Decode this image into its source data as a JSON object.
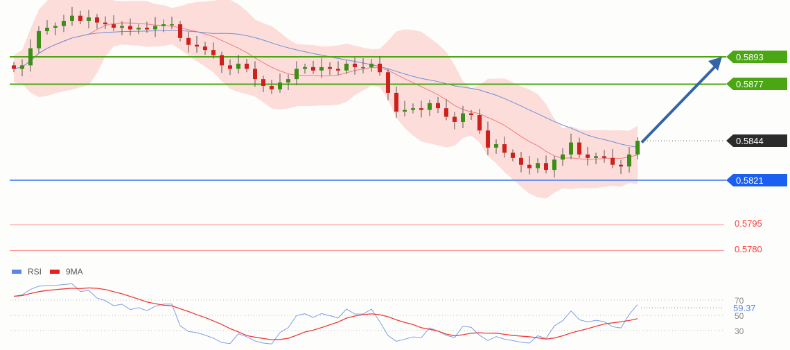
{
  "chart_data": {
    "type": "candlestick",
    "instrument_price_scale": "price",
    "price_range": [
      0.577,
      0.592
    ],
    "closes": [
      0.5886,
      0.5888,
      0.5898,
      0.5908,
      0.591,
      0.5911,
      0.5914,
      0.5917,
      0.5914,
      0.5916,
      0.5913,
      0.5912,
      0.591,
      0.5911,
      0.5909,
      0.591,
      0.5909,
      0.5911,
      0.5912,
      0.5912,
      0.5904,
      0.59,
      0.5899,
      0.5897,
      0.5894,
      0.5888,
      0.5886,
      0.5889,
      0.5886,
      0.588,
      0.5876,
      0.5874,
      0.5878,
      0.588,
      0.5886,
      0.5887,
      0.5885,
      0.5887,
      0.5886,
      0.5885,
      0.5889,
      0.5887,
      0.5887,
      0.5889,
      0.5884,
      0.5872,
      0.5861,
      0.5862,
      0.5863,
      0.5862,
      0.5866,
      0.5863,
      0.5858,
      0.5855,
      0.586,
      0.5859,
      0.585,
      0.584,
      0.5842,
      0.5837,
      0.5834,
      0.583,
      0.5828,
      0.5831,
      0.5827,
      0.5833,
      0.5836,
      0.5843,
      0.5836,
      0.5834,
      0.5835,
      0.5834,
      0.583,
      0.5829,
      0.5836,
      0.5844
    ],
    "levels": [
      {
        "value": 0.5893,
        "label": "0.5893",
        "kind": "resistance",
        "color": "#4aa613"
      },
      {
        "value": 0.5877,
        "label": "0.5877",
        "kind": "resistance",
        "color": "#4aa613"
      },
      {
        "value": 0.5844,
        "label": "0.5844",
        "kind": "current",
        "color": "#2b2b2b"
      },
      {
        "value": 0.5821,
        "label": "0.5821",
        "kind": "pivot",
        "color": "#1a5ff0"
      },
      {
        "value": 0.5795,
        "label": "0.5795",
        "kind": "support",
        "color": "#ff3b3b"
      },
      {
        "value": 0.578,
        "label": "0.5780",
        "kind": "support",
        "color": "#ff3b3b"
      }
    ],
    "arrow": {
      "from": 0.5843,
      "to": 0.5893,
      "direction": "up"
    },
    "colors": {
      "up": "#3a8f14",
      "down": "#d0201b",
      "ma20": "#f07b7b",
      "ma50": "#6c8fd8",
      "band": "#fbd5d2"
    },
    "rsi": {
      "legend": [
        {
          "label": "RSI",
          "color": "#5b86e5"
        },
        {
          "label": "9MA",
          "color": "#ee1c1c"
        }
      ],
      "ticks": [
        "70",
        "50",
        "30"
      ],
      "tick_values": [
        70,
        50,
        30
      ],
      "current_label": "59.37",
      "current_value": 59.37
    }
  }
}
